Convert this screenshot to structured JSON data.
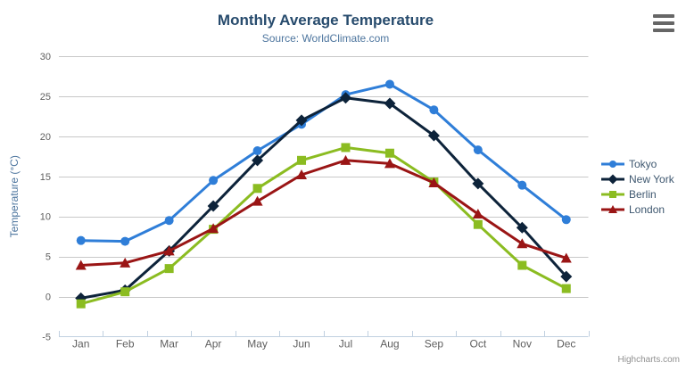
{
  "header": {
    "title": "Monthly Average Temperature",
    "subtitle": "Source: WorldClimate.com"
  },
  "toolbar": {
    "menu_icon": "hamburger-menu-icon"
  },
  "credits": {
    "label": "Highcharts.com"
  },
  "colors": {
    "title": "#274b6d",
    "subtitle": "#4d759e",
    "axis_label": "#606060",
    "axis_title": "#4d759e",
    "grid": "#c8c8c8",
    "axis_line": "#c0d0e0",
    "legend_text": "#3e576f",
    "credits": "#909090"
  },
  "chart_data": {
    "type": "line",
    "title": "Monthly Average Temperature",
    "subtitle": "Source: WorldClimate.com",
    "categories": [
      "Jan",
      "Feb",
      "Mar",
      "Apr",
      "May",
      "Jun",
      "Jul",
      "Aug",
      "Sep",
      "Oct",
      "Nov",
      "Dec"
    ],
    "xlabel": "",
    "ylabel": "Temperature (°C)",
    "ylim": [
      -5,
      30
    ],
    "ytick_step": 5,
    "grid": true,
    "legend_position": "right",
    "series": [
      {
        "name": "Tokyo",
        "color": "#2f7ed8",
        "marker": "circle",
        "values": [
          7.0,
          6.9,
          9.5,
          14.5,
          18.2,
          21.5,
          25.2,
          26.5,
          23.3,
          18.3,
          13.9,
          9.6
        ]
      },
      {
        "name": "New York",
        "color": "#0d233a",
        "marker": "diamond",
        "values": [
          -0.2,
          0.8,
          5.7,
          11.3,
          17.0,
          22.0,
          24.8,
          24.1,
          20.1,
          14.1,
          8.6,
          2.5
        ]
      },
      {
        "name": "Berlin",
        "color": "#8bbc21",
        "marker": "square",
        "values": [
          -0.9,
          0.6,
          3.5,
          8.4,
          13.5,
          17.0,
          18.6,
          17.9,
          14.3,
          9.0,
          3.9,
          1.0
        ]
      },
      {
        "name": "London",
        "color": "#9a1515",
        "marker": "triangle",
        "values": [
          3.9,
          4.2,
          5.7,
          8.5,
          11.9,
          15.2,
          17.0,
          16.6,
          14.2,
          10.3,
          6.6,
          4.8
        ]
      }
    ]
  }
}
